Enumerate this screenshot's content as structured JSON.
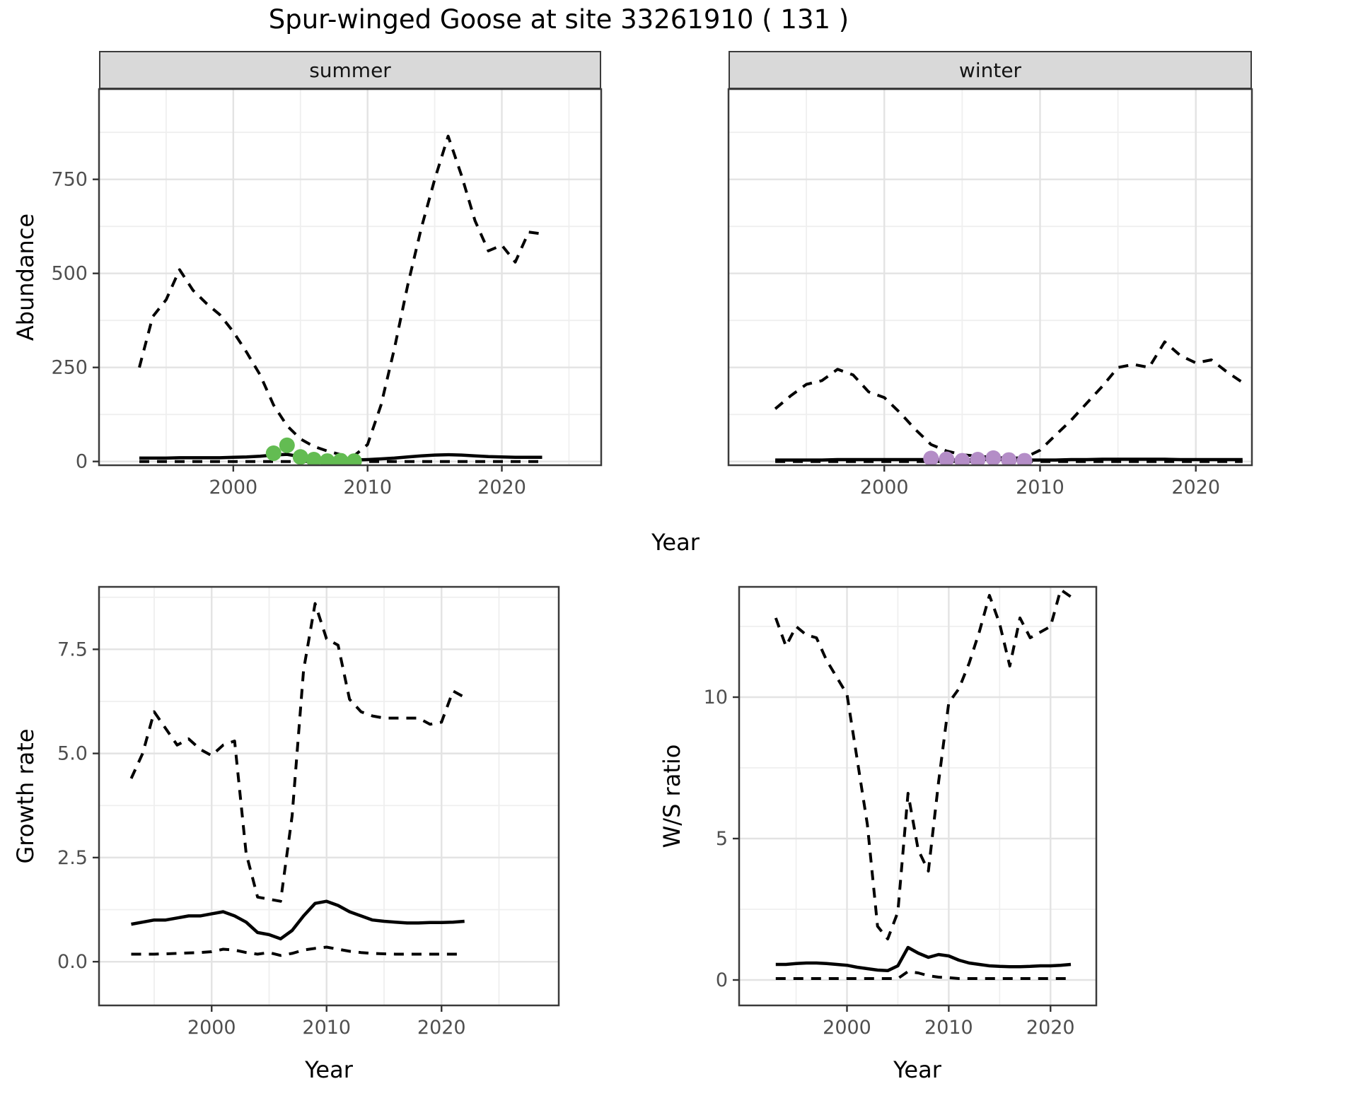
{
  "title": "Spur-winged Goose at site 33261910 ( 131 )",
  "top_xlabel": "Year",
  "style": {
    "line_color": "#000000",
    "grid_major": "#e3e3e3",
    "grid_minor": "#efefef",
    "strip_bg": "#d9d9d9",
    "panel_border": "#3b3b3b",
    "tick_text": "#4f4f4f",
    "summer_point_color": "#63bc52",
    "winter_point_color": "#b48dc7",
    "dash_pattern": "14 11"
  },
  "chart_data": [
    {
      "id": "abundance-summer",
      "type": "line",
      "facet": "summer",
      "ylabel": "Abundance",
      "xlabel": "Year",
      "grid": true,
      "legend": "none",
      "x": [
        1993,
        1994,
        1995,
        1996,
        1997,
        1998,
        1999,
        2000,
        2001,
        2002,
        2003,
        2004,
        2005,
        2006,
        2007,
        2008,
        2009,
        2010,
        2011,
        2012,
        2013,
        2014,
        2015,
        2016,
        2017,
        2018,
        2019,
        2020,
        2021,
        2022,
        2023
      ],
      "series": [
        {
          "name": "upper_ci",
          "linetype": "dashed",
          "values": [
            250,
            385,
            430,
            510,
            455,
            420,
            390,
            345,
            290,
            230,
            150,
            95,
            60,
            40,
            28,
            18,
            15,
            45,
            150,
            300,
            470,
            620,
            750,
            865,
            760,
            640,
            560,
            575,
            530,
            610,
            605
          ]
        },
        {
          "name": "lower_ci",
          "linetype": "dashed",
          "values": [
            0,
            0,
            0,
            0,
            0,
            0,
            0,
            0,
            0,
            0,
            0,
            0,
            0,
            0,
            0,
            0,
            0,
            0,
            0,
            0,
            0,
            0,
            0,
            0,
            0,
            0,
            0,
            0,
            0,
            0,
            0
          ]
        },
        {
          "name": "mean",
          "linetype": "solid",
          "values": [
            9,
            9,
            9,
            10,
            10,
            10,
            10,
            11,
            12,
            14,
            17,
            19,
            13,
            8,
            5,
            4,
            4,
            5,
            7,
            9,
            12,
            15,
            17,
            18,
            17,
            15,
            13,
            12,
            11,
            11,
            11
          ]
        }
      ],
      "points": {
        "name": "observed-abundance-summer",
        "color": "#63bc52",
        "x": [
          2003,
          2004,
          2005,
          2006,
          2007,
          2008,
          2009
        ],
        "y": [
          22,
          43,
          12,
          5,
          1,
          2,
          1
        ]
      },
      "xlim": [
        1990,
        2027.4
      ],
      "ylim": [
        -10,
        990
      ],
      "xticks": [
        2000,
        2010,
        2020
      ],
      "xtick_labels": [
        "2000",
        "2010",
        "2020"
      ],
      "yticks": [
        0,
        250,
        500,
        750
      ],
      "ytick_labels": [
        "0",
        "250",
        "500",
        "750"
      ],
      "minor_xticks": [
        1995,
        2005,
        2015,
        2025
      ],
      "minor_yticks": [
        125,
        375,
        625,
        875
      ],
      "show_ytick_labels": true
    },
    {
      "id": "abundance-winter",
      "type": "line",
      "facet": "winter",
      "ylabel": "Abundance",
      "xlabel": "Year",
      "grid": true,
      "legend": "none",
      "x": [
        1993,
        1994,
        1995,
        1996,
        1997,
        1998,
        1999,
        2000,
        2001,
        2002,
        2003,
        2004,
        2005,
        2006,
        2007,
        2008,
        2009,
        2010,
        2011,
        2012,
        2013,
        2014,
        2015,
        2016,
        2017,
        2018,
        2019,
        2020,
        2021,
        2022,
        2023
      ],
      "series": [
        {
          "name": "upper_ci",
          "linetype": "dashed",
          "values": [
            140,
            175,
            205,
            215,
            245,
            230,
            185,
            170,
            130,
            85,
            45,
            28,
            18,
            14,
            11,
            9,
            10,
            30,
            70,
            110,
            155,
            200,
            250,
            258,
            250,
            318,
            282,
            262,
            270,
            238,
            210
          ]
        },
        {
          "name": "lower_ci",
          "linetype": "dashed",
          "values": [
            0,
            0,
            0,
            0,
            0,
            0,
            0,
            0,
            0,
            0,
            0,
            0,
            0,
            0,
            0,
            0,
            0,
            0,
            0,
            0,
            0,
            0,
            0,
            0,
            0,
            0,
            0,
            0,
            0,
            0,
            0
          ]
        },
        {
          "name": "mean",
          "linetype": "solid",
          "values": [
            4,
            4,
            4,
            4,
            5,
            5,
            5,
            5,
            5,
            5,
            5,
            4,
            4,
            5,
            6,
            5,
            4,
            4,
            4,
            5,
            5,
            6,
            6,
            6,
            6,
            6,
            5,
            5,
            5,
            5,
            5
          ]
        }
      ],
      "points": {
        "name": "observed-abundance-winter",
        "color": "#b48dc7",
        "x": [
          2003,
          2004,
          2005,
          2006,
          2007,
          2008,
          2009
        ],
        "y": [
          8,
          6,
          2,
          5,
          9,
          4,
          2
        ]
      },
      "xlim": [
        1990,
        2023.6
      ],
      "ylim": [
        -10,
        990
      ],
      "xticks": [
        2000,
        2010,
        2020
      ],
      "xtick_labels": [
        "2000",
        "2010",
        "2020"
      ],
      "yticks": [
        0,
        250,
        500,
        750
      ],
      "ytick_labels": [
        "0",
        "250",
        "500",
        "750"
      ],
      "minor_xticks": [
        1995,
        2005,
        2015
      ],
      "minor_yticks": [
        125,
        375,
        625,
        875
      ],
      "show_ytick_labels": false
    },
    {
      "id": "growth-rate",
      "type": "line",
      "facet": "",
      "ylabel": "Growth rate",
      "xlabel": "Year",
      "grid": true,
      "legend": "none",
      "x": [
        1993,
        1994,
        1995,
        1996,
        1997,
        1998,
        1999,
        2000,
        2001,
        2002,
        2003,
        2004,
        2005,
        2006,
        2007,
        2008,
        2009,
        2010,
        2011,
        2012,
        2013,
        2014,
        2015,
        2016,
        2017,
        2018,
        2019,
        2020,
        2021,
        2022
      ],
      "series": [
        {
          "name": "upper_ci",
          "linetype": "dashed",
          "values": [
            4.4,
            5.0,
            6.0,
            5.6,
            5.2,
            5.35,
            5.1,
            4.95,
            5.2,
            5.3,
            2.6,
            1.55,
            1.5,
            1.45,
            3.5,
            7.0,
            8.6,
            7.75,
            7.6,
            6.3,
            6.0,
            5.9,
            5.85,
            5.85,
            5.85,
            5.85,
            5.7,
            5.75,
            6.5,
            6.35
          ]
        },
        {
          "name": "lower_ci",
          "linetype": "dashed",
          "values": [
            0.18,
            0.18,
            0.18,
            0.19,
            0.2,
            0.21,
            0.22,
            0.24,
            0.3,
            0.28,
            0.22,
            0.18,
            0.22,
            0.15,
            0.2,
            0.28,
            0.32,
            0.35,
            0.3,
            0.25,
            0.22,
            0.2,
            0.19,
            0.18,
            0.18,
            0.18,
            0.18,
            0.18,
            0.18,
            0.18
          ]
        },
        {
          "name": "mean",
          "linetype": "solid",
          "values": [
            0.9,
            0.95,
            1.0,
            1.0,
            1.05,
            1.1,
            1.1,
            1.15,
            1.2,
            1.1,
            0.95,
            0.7,
            0.65,
            0.55,
            0.75,
            1.1,
            1.4,
            1.45,
            1.35,
            1.2,
            1.1,
            1.0,
            0.97,
            0.95,
            0.93,
            0.93,
            0.94,
            0.94,
            0.95,
            0.97
          ]
        }
      ],
      "xlim": [
        1990.2,
        2030.2
      ],
      "ylim": [
        -1.05,
        9.0
      ],
      "xticks": [
        2000,
        2010,
        2020
      ],
      "xtick_labels": [
        "2000",
        "2010",
        "2020"
      ],
      "yticks": [
        0,
        2.5,
        5,
        7.5
      ],
      "ytick_labels": [
        "0.0",
        "2.5",
        "5.0",
        "7.5"
      ],
      "minor_xticks": [
        1995,
        2005,
        2015,
        2025
      ],
      "minor_yticks": [
        1.25,
        3.75,
        6.25,
        8.75
      ],
      "show_ytick_labels": true
    },
    {
      "id": "ws-ratio",
      "type": "line",
      "facet": "",
      "ylabel": "W/S ratio",
      "xlabel": "Year",
      "grid": true,
      "legend": "none",
      "x": [
        1993,
        1994,
        1995,
        1996,
        1997,
        1998,
        1999,
        2000,
        2001,
        2002,
        2003,
        2004,
        2005,
        2006,
        2007,
        2008,
        2009,
        2010,
        2011,
        2012,
        2013,
        2014,
        2015,
        2016,
        2017,
        2018,
        2019,
        2020,
        2021,
        2022
      ],
      "series": [
        {
          "name": "upper_ci",
          "linetype": "dashed",
          "values": [
            12.8,
            11.8,
            12.5,
            12.2,
            12.1,
            11.3,
            10.7,
            10.1,
            7.8,
            5.5,
            1.9,
            1.45,
            2.4,
            6.6,
            4.6,
            3.85,
            7.0,
            9.8,
            10.3,
            11.2,
            12.3,
            13.6,
            12.6,
            11.1,
            12.8,
            12.1,
            12.3,
            12.5,
            13.8,
            13.55
          ]
        },
        {
          "name": "lower_ci",
          "linetype": "dashed",
          "values": [
            0.05,
            0.05,
            0.05,
            0.05,
            0.05,
            0.05,
            0.05,
            0.05,
            0.05,
            0.05,
            0.05,
            0.05,
            0.05,
            0.3,
            0.25,
            0.15,
            0.1,
            0.08,
            0.05,
            0.05,
            0.05,
            0.05,
            0.05,
            0.05,
            0.05,
            0.05,
            0.05,
            0.05,
            0.05,
            0.05
          ]
        },
        {
          "name": "mean",
          "linetype": "solid",
          "values": [
            0.55,
            0.55,
            0.58,
            0.6,
            0.6,
            0.58,
            0.55,
            0.52,
            0.45,
            0.4,
            0.35,
            0.33,
            0.5,
            1.15,
            0.95,
            0.8,
            0.9,
            0.85,
            0.7,
            0.6,
            0.55,
            0.5,
            0.48,
            0.47,
            0.47,
            0.48,
            0.5,
            0.5,
            0.52,
            0.55
          ]
        }
      ],
      "xlim": [
        1989.4,
        2024.5
      ],
      "ylim": [
        -0.9,
        13.9
      ],
      "xticks": [
        2000,
        2010,
        2020
      ],
      "xtick_labels": [
        "2000",
        "2010",
        "2020"
      ],
      "yticks": [
        0,
        5,
        10
      ],
      "ytick_labels": [
        "0",
        "5",
        "10"
      ],
      "minor_xticks": [
        1995,
        2005,
        2015
      ],
      "minor_yticks": [
        2.5,
        7.5,
        12.5
      ],
      "show_ytick_labels": true
    }
  ]
}
